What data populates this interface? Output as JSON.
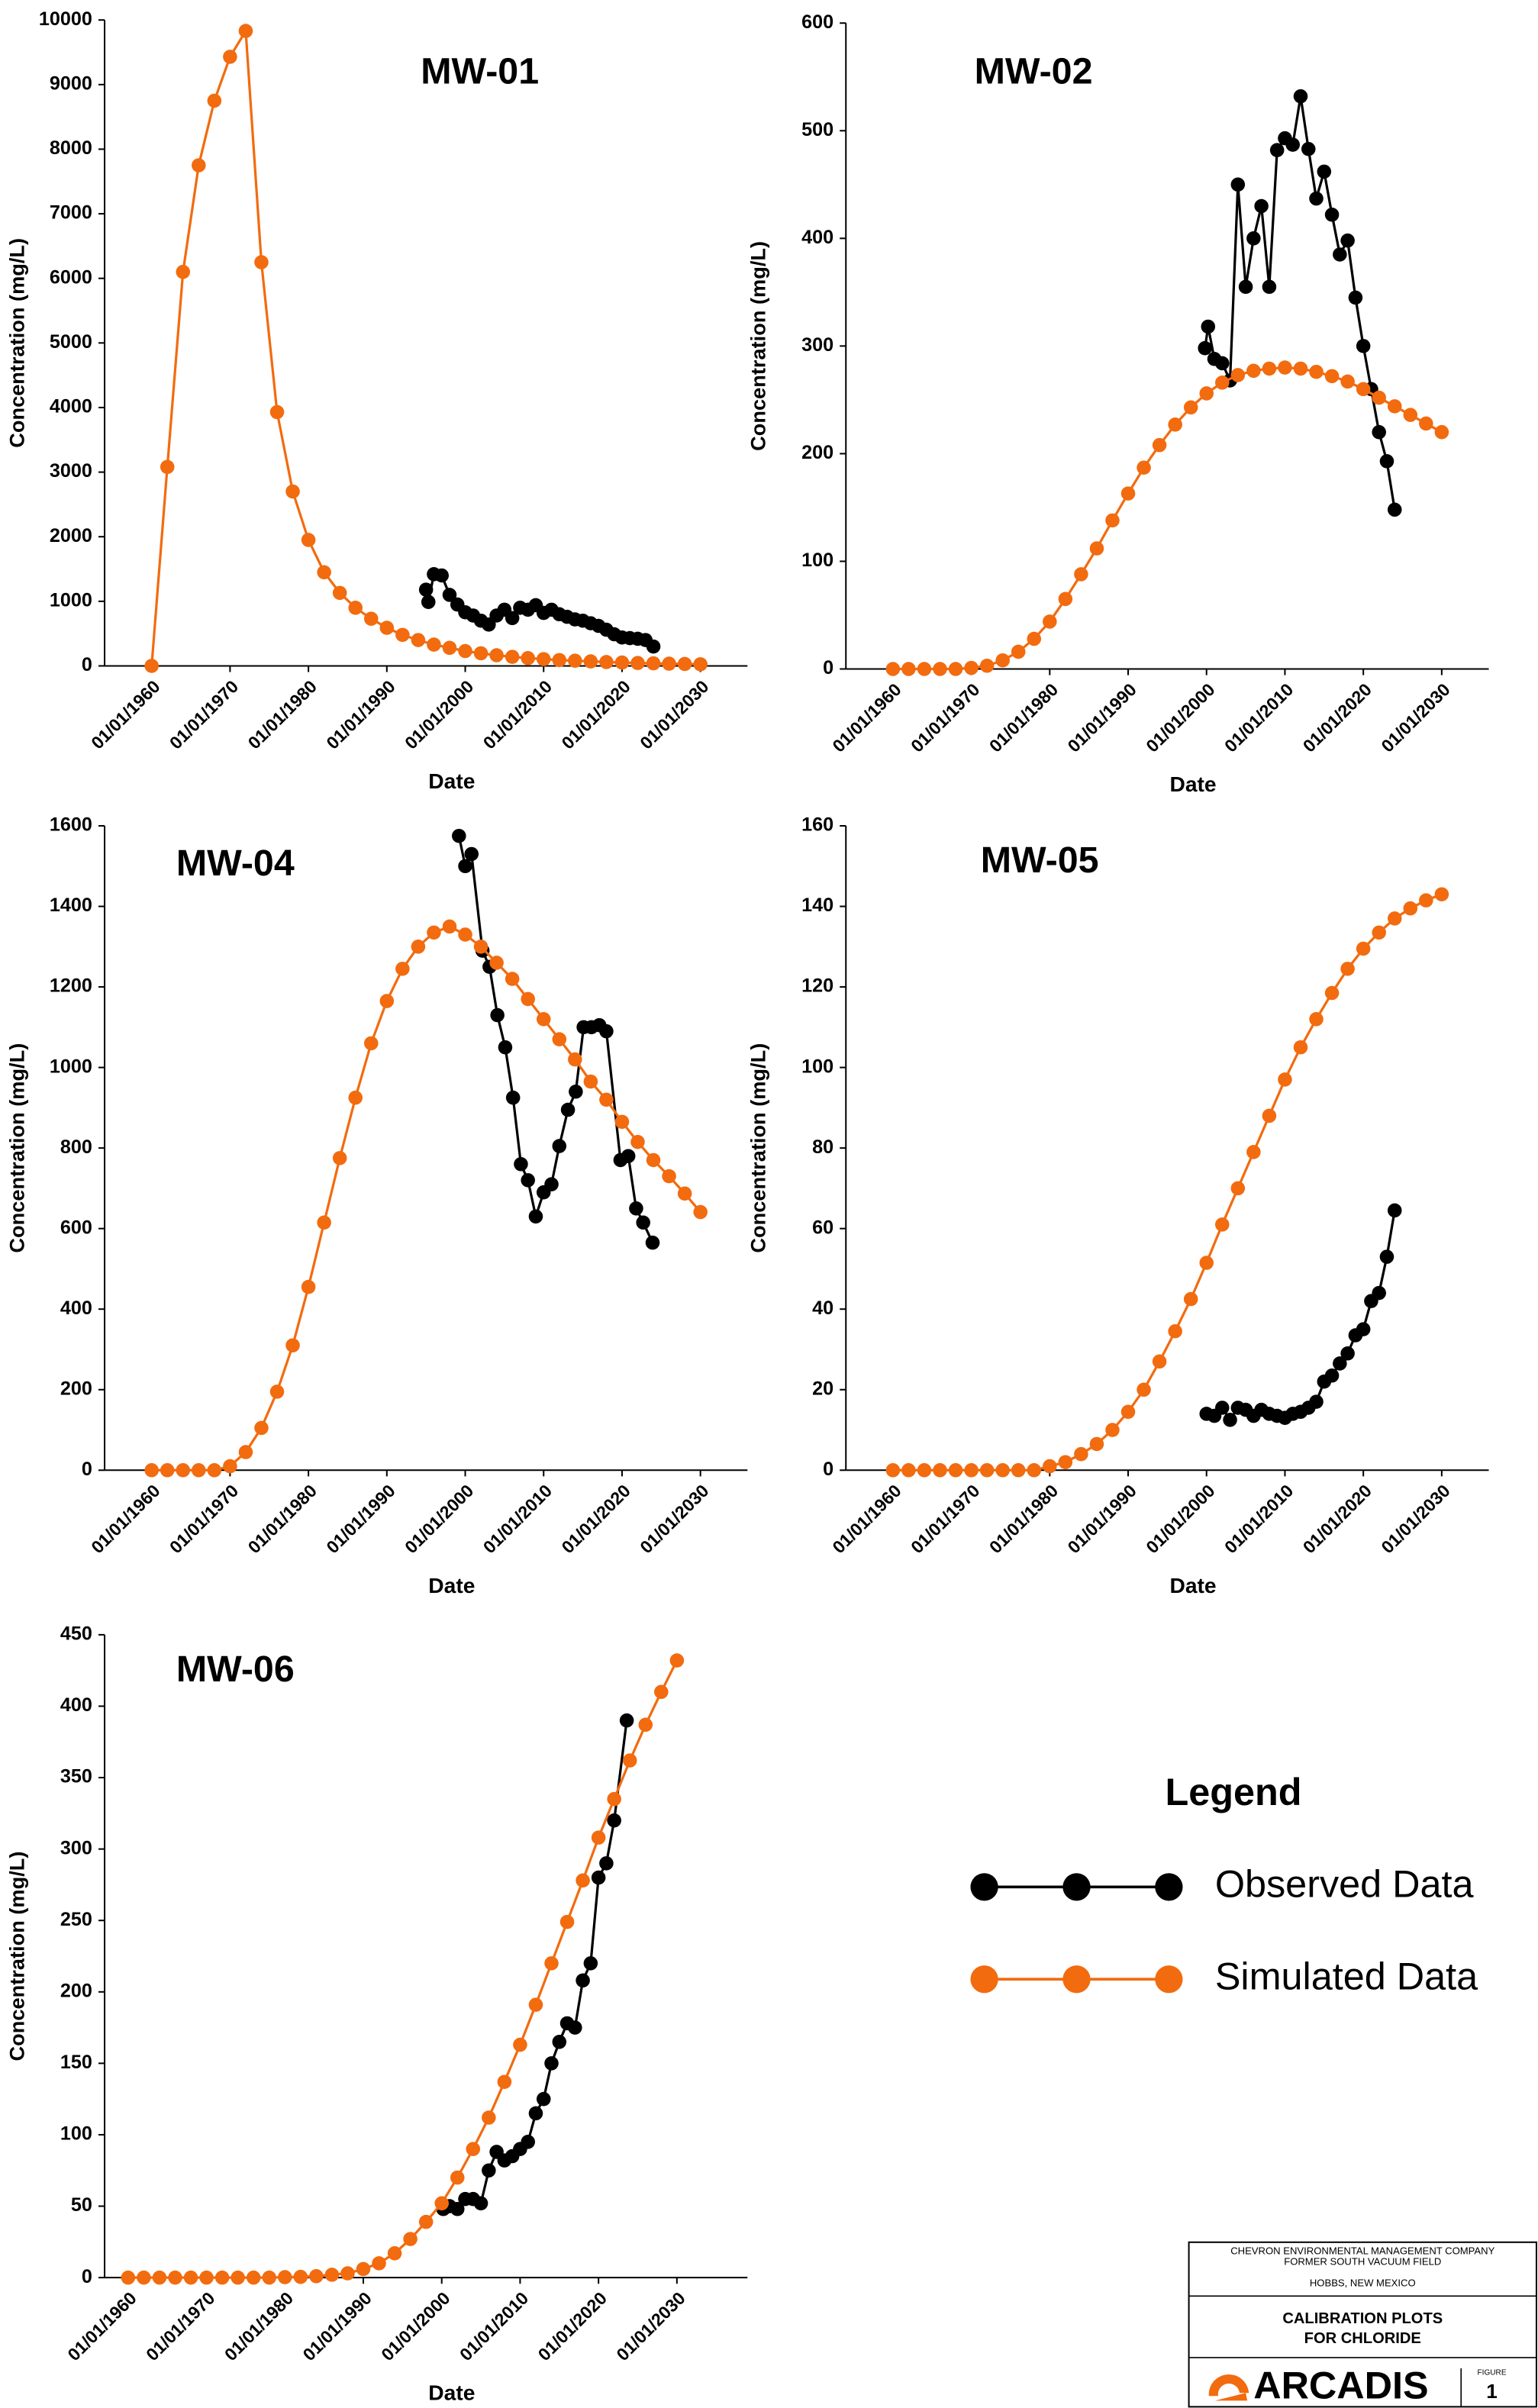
{
  "chart_data": [
    {
      "type": "line",
      "title": "MW-01",
      "xlabel": "Date",
      "ylabel": "Concentration (mg/L)",
      "xlim": [
        1954,
        2036
      ],
      "xticks": [
        {
          "value": 1960,
          "label": "01/01/1960"
        },
        {
          "value": 1970,
          "label": "01/01/1970"
        },
        {
          "value": 1980,
          "label": "01/01/1980"
        },
        {
          "value": 1990,
          "label": "01/01/1990"
        },
        {
          "value": 2000,
          "label": "01/01/2000"
        },
        {
          "value": 2010,
          "label": "01/01/2010"
        },
        {
          "value": 2020,
          "label": "01/01/2020"
        },
        {
          "value": 2030,
          "label": "01/01/2030"
        }
      ],
      "ylim": [
        0,
        10000
      ],
      "yticks": [
        0,
        1000,
        2000,
        3000,
        4000,
        5000,
        6000,
        7000,
        8000,
        9000,
        10000
      ],
      "series": [
        {
          "name": "Observed Data",
          "color": "#000000",
          "x": [
            1995,
            1995.3,
            1996,
            1997,
            1998,
            1999,
            2000,
            2001,
            2002,
            2003,
            2004,
            2005,
            2006,
            2007,
            2008,
            2009,
            2010,
            2011,
            2012,
            2013,
            2014,
            2015,
            2016,
            2017,
            2018,
            2019,
            2020,
            2021,
            2022,
            2023,
            2024
          ],
          "values": [
            1180,
            990,
            1420,
            1400,
            1100,
            950,
            830,
            780,
            700,
            640,
            780,
            870,
            740,
            900,
            870,
            940,
            820,
            870,
            800,
            760,
            720,
            700,
            660,
            620,
            560,
            490,
            440,
            430,
            420,
            400,
            300
          ]
        },
        {
          "name": "Simulated Data",
          "color": "#f26b0f",
          "x": [
            1960,
            1962,
            1964,
            1966,
            1968,
            1970,
            1972,
            1974,
            1976,
            1978,
            1980,
            1982,
            1984,
            1986,
            1988,
            1990,
            1992,
            1994,
            1996,
            1998,
            2000,
            2002,
            2004,
            2006,
            2008,
            2010,
            2012,
            2014,
            2016,
            2018,
            2020,
            2022,
            2024,
            2026,
            2028,
            2030
          ],
          "values": [
            0,
            3080,
            6100,
            7750,
            8750,
            9430,
            9830,
            6250,
            3930,
            2700,
            1950,
            1450,
            1130,
            900,
            730,
            590,
            480,
            400,
            330,
            280,
            230,
            195,
            165,
            140,
            120,
            105,
            90,
            80,
            70,
            60,
            52,
            45,
            40,
            35,
            30,
            25
          ]
        }
      ]
    },
    {
      "type": "line",
      "title": "MW-02",
      "xlabel": "Date",
      "ylabel": "Concentration (mg/L)",
      "xlim": [
        1954,
        2036
      ],
      "xticks": [
        {
          "value": 1960,
          "label": "01/01/1960"
        },
        {
          "value": 1970,
          "label": "01/01/1970"
        },
        {
          "value": 1980,
          "label": "01/01/1980"
        },
        {
          "value": 1990,
          "label": "01/01/1990"
        },
        {
          "value": 2000,
          "label": "01/01/2000"
        },
        {
          "value": 2010,
          "label": "01/01/2010"
        },
        {
          "value": 2020,
          "label": "01/01/2020"
        },
        {
          "value": 2030,
          "label": "01/01/2030"
        }
      ],
      "ylim": [
        0,
        600
      ],
      "yticks": [
        0,
        100,
        200,
        300,
        400,
        500,
        600
      ],
      "series": [
        {
          "name": "Observed Data",
          "color": "#000000",
          "x": [
            1999.8,
            2000.2,
            2001,
            2002,
            2003,
            2004,
            2005,
            2006,
            2007,
            2008,
            2009,
            2010,
            2011,
            2012,
            2013,
            2014,
            2015,
            2016,
            2017,
            2018,
            2019,
            2020,
            2021,
            2022,
            2023,
            2024
          ],
          "values": [
            298,
            318,
            288,
            284,
            268,
            450,
            355,
            400,
            430,
            355,
            482,
            493,
            487,
            532,
            483,
            437,
            462,
            422,
            385,
            398,
            345,
            300,
            260,
            220,
            193,
            148
          ]
        },
        {
          "name": "Simulated Data",
          "color": "#f26b0f",
          "x": [
            1960,
            1962,
            1964,
            1966,
            1968,
            1970,
            1972,
            1974,
            1976,
            1978,
            1980,
            1982,
            1984,
            1986,
            1988,
            1990,
            1992,
            1994,
            1996,
            1998,
            2000,
            2002,
            2004,
            2006,
            2008,
            2010,
            2012,
            2014,
            2016,
            2018,
            2020,
            2022,
            2024,
            2026,
            2028,
            2030
          ],
          "values": [
            0,
            0,
            0,
            0,
            0,
            1,
            3,
            8,
            16,
            28,
            44,
            65,
            88,
            112,
            138,
            163,
            187,
            208,
            227,
            243,
            256,
            266,
            273,
            277,
            279,
            280,
            279,
            276,
            272,
            267,
            260,
            252,
            244,
            236,
            228,
            220
          ]
        }
      ]
    },
    {
      "type": "line",
      "title": "MW-04",
      "xlabel": "Date",
      "ylabel": "Concentration (mg/L)",
      "xlim": [
        1954,
        2036
      ],
      "xticks": [
        {
          "value": 1960,
          "label": "01/01/1960"
        },
        {
          "value": 1970,
          "label": "01/01/1970"
        },
        {
          "value": 1980,
          "label": "01/01/1980"
        },
        {
          "value": 1990,
          "label": "01/01/1990"
        },
        {
          "value": 2000,
          "label": "01/01/2000"
        },
        {
          "value": 2010,
          "label": "01/01/2010"
        },
        {
          "value": 2020,
          "label": "01/01/2020"
        },
        {
          "value": 2030,
          "label": "01/01/2030"
        }
      ],
      "ylim": [
        0,
        1600
      ],
      "yticks": [
        0,
        200,
        400,
        600,
        800,
        1000,
        1200,
        1400,
        1600
      ],
      "series": [
        {
          "name": "Observed Data",
          "color": "#000000",
          "x": [
            1999.2,
            2000.0,
            2000.8,
            2002.2,
            2003.1,
            2004.1,
            2005.1,
            2006.1,
            2007.1,
            2008.0,
            2009.0,
            2010.0,
            2011.0,
            2012.0,
            2013.1,
            2014.1,
            2015.1,
            2016.1,
            2017.1,
            2018.0,
            2019.8,
            2020.8,
            2021.8,
            2022.7,
            2023.9
          ],
          "values": [
            1575,
            1500,
            1530,
            1290,
            1250,
            1130,
            1050,
            925,
            760,
            720,
            630,
            690,
            710,
            805,
            895,
            940,
            1100,
            1100,
            1105,
            1090,
            770,
            780,
            650,
            615,
            565
          ]
        },
        {
          "name": "Simulated Data",
          "color": "#f26b0f",
          "x": [
            1960,
            1962,
            1964,
            1966,
            1968,
            1970,
            1972,
            1974,
            1976,
            1978,
            1980,
            1982,
            1984,
            1986,
            1988,
            1990,
            1992,
            1994,
            1996,
            1998,
            2000,
            2002,
            2004,
            2006,
            2008,
            2010,
            2012,
            2014,
            2016,
            2018,
            2020,
            2022,
            2024,
            2026,
            2028,
            2030
          ],
          "values": [
            0,
            0,
            0,
            0,
            0,
            10,
            45,
            105,
            195,
            310,
            455,
            615,
            775,
            925,
            1060,
            1165,
            1245,
            1300,
            1335,
            1350,
            1330,
            1300,
            1260,
            1220,
            1170,
            1120,
            1070,
            1020,
            965,
            920,
            865,
            815,
            770,
            730,
            687,
            641
          ]
        }
      ]
    },
    {
      "type": "line",
      "title": "MW-05",
      "xlabel": "Date",
      "ylabel": "Concentration (mg/L)",
      "xlim": [
        1954,
        2036
      ],
      "xticks": [
        {
          "value": 1960,
          "label": "01/01/1960"
        },
        {
          "value": 1970,
          "label": "01/01/1970"
        },
        {
          "value": 1980,
          "label": "01/01/1980"
        },
        {
          "value": 1990,
          "label": "01/01/1990"
        },
        {
          "value": 2000,
          "label": "01/01/2000"
        },
        {
          "value": 2010,
          "label": "01/01/2010"
        },
        {
          "value": 2020,
          "label": "01/01/2020"
        },
        {
          "value": 2030,
          "label": "01/01/2030"
        }
      ],
      "ylim": [
        0,
        160
      ],
      "yticks": [
        0,
        20,
        40,
        60,
        80,
        100,
        120,
        140,
        160
      ],
      "series": [
        {
          "name": "Observed Data",
          "color": "#000000",
          "x": [
            2000,
            2001,
            2002,
            2003,
            2004,
            2005,
            2006,
            2007,
            2008,
            2009,
            2010,
            2011,
            2012,
            2013,
            2014,
            2015,
            2016,
            2017,
            2018,
            2019,
            2020,
            2021,
            2022,
            2023,
            2024
          ],
          "values": [
            14,
            13.5,
            15.5,
            12.5,
            15.5,
            15,
            13.5,
            15,
            14,
            13.5,
            13,
            14,
            14.5,
            15.5,
            17,
            22,
            23.5,
            26.5,
            29,
            33.5,
            35,
            42,
            44,
            53,
            64.5
          ]
        },
        {
          "name": "Simulated Data",
          "color": "#f26b0f",
          "x": [
            1960,
            1962,
            1964,
            1966,
            1968,
            1970,
            1972,
            1974,
            1976,
            1978,
            1980,
            1982,
            1984,
            1986,
            1988,
            1990,
            1992,
            1994,
            1996,
            1998,
            2000,
            2002,
            2004,
            2006,
            2008,
            2010,
            2012,
            2014,
            2016,
            2018,
            2020,
            2022,
            2024,
            2026,
            2028,
            2030
          ],
          "values": [
            0,
            0,
            0,
            0,
            0,
            0,
            0,
            0,
            0,
            0,
            1,
            2,
            4,
            6.5,
            10,
            14.5,
            20,
            27,
            34.5,
            42.5,
            51.5,
            61,
            70,
            79,
            88,
            97,
            105,
            112,
            118.5,
            124.5,
            129.5,
            133.5,
            137,
            139.5,
            141.5,
            143
          ]
        }
      ]
    },
    {
      "type": "line",
      "title": "MW-06",
      "xlabel": "Date",
      "ylabel": "Concentration (mg/L)",
      "xlim": [
        1957,
        2039
      ],
      "xticks": [
        {
          "value": 1960,
          "label": "01/01/1960"
        },
        {
          "value": 1970,
          "label": "01/01/1970"
        },
        {
          "value": 1980,
          "label": "01/01/1980"
        },
        {
          "value": 1990,
          "label": "01/01/1990"
        },
        {
          "value": 2000,
          "label": "01/01/2000"
        },
        {
          "value": 2010,
          "label": "01/01/2010"
        },
        {
          "value": 2020,
          "label": "01/01/2020"
        },
        {
          "value": 2030,
          "label": "01/01/2030"
        }
      ],
      "ylim": [
        0,
        450
      ],
      "yticks": [
        0,
        50,
        100,
        150,
        200,
        250,
        300,
        350,
        400,
        450
      ],
      "series": [
        {
          "name": "Observed Data",
          "color": "#000000",
          "x": [
            2000.2,
            2001,
            2002,
            2003,
            2004,
            2005,
            2006,
            2007,
            2008,
            2009,
            2010,
            2011,
            2012,
            2013,
            2014,
            2015,
            2016,
            2017,
            2018,
            2019,
            2020,
            2021,
            2022,
            2023.6
          ],
          "values": [
            48,
            50,
            48,
            55,
            55,
            52,
            75,
            88,
            82,
            85,
            90,
            95,
            115,
            125,
            150,
            165,
            178,
            175,
            208,
            220,
            280,
            290,
            320,
            390
          ]
        },
        {
          "name": "Simulated Data",
          "color": "#f26b0f",
          "x": [
            1960,
            1962,
            1964,
            1966,
            1968,
            1970,
            1972,
            1974,
            1976,
            1978,
            1980,
            1982,
            1984,
            1986,
            1988,
            1990,
            1992,
            1994,
            1996,
            1998,
            2000,
            2002,
            2004,
            2006,
            2008,
            2010,
            2012,
            2014,
            2016,
            2018,
            2020,
            2022,
            2024,
            2026,
            2028,
            2030
          ],
          "values": [
            0,
            0,
            0,
            0,
            0,
            0,
            0,
            0,
            0,
            0,
            0.3,
            0.5,
            1,
            2,
            3,
            6,
            10,
            17,
            27,
            39,
            52,
            70,
            90,
            112,
            137,
            163,
            191,
            220,
            249,
            278,
            308,
            335,
            362,
            387,
            410,
            432
          ]
        }
      ]
    }
  ],
  "legend": {
    "title": "Legend"
  },
  "title_block": {
    "company": "CHEVRON ENVIRONMENTAL MANAGEMENT COMPANY",
    "site": "FORMER SOUTH VACUUM FIELD",
    "location": "HOBBS, NEW MEXICO",
    "title_lines": [
      "CALIBRATION PLOTS",
      "FOR CHLORIDE"
    ],
    "logo": "ARCADIS",
    "figure_label": "FIGURE",
    "figure_number": "1"
  }
}
